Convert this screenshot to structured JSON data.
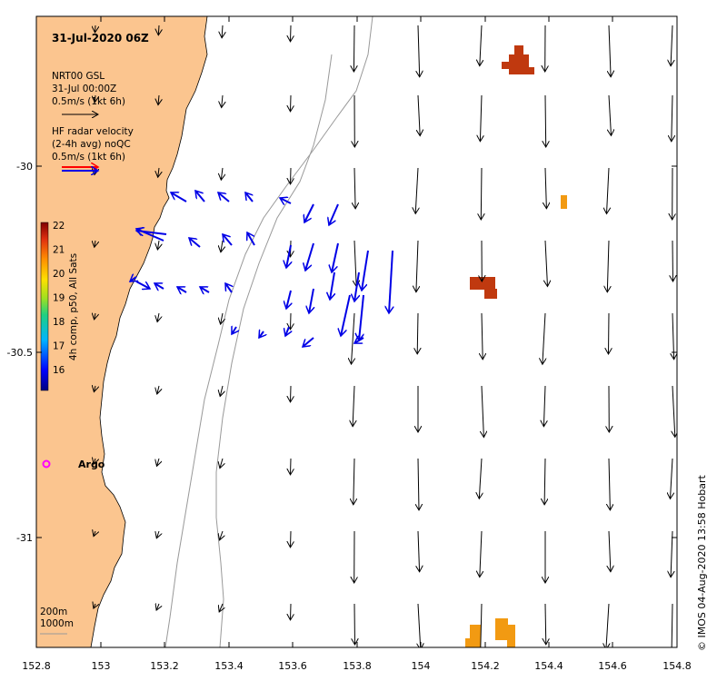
{
  "title": "31-Jul-2020 06Z",
  "model_legend": {
    "name": "NRT00 GSL",
    "time": "31-Jul 00:00Z",
    "scale": "0.5m/s (1kt 6h)"
  },
  "radar_legend": {
    "line1": "HF radar velocity",
    "line2": "(2-4h avg) noQC",
    "scale": "0.5m/s (1kt 6h)"
  },
  "colorbar": {
    "label": "4h comp, p50, All Sats",
    "ticks": [
      "16",
      "17",
      "18",
      "19",
      "20",
      "21",
      "22"
    ]
  },
  "argo_label": "Argo",
  "depth_legend": [
    "200m",
    "1000m"
  ],
  "x_ticks": [
    "152.8",
    "153",
    "153.2",
    "153.4",
    "153.6",
    "153.8",
    "154",
    "154.2",
    "154.4",
    "154.6",
    "154.8"
  ],
  "y_ticks": [
    "-30",
    "-30.5",
    "-31"
  ],
  "credit": "© IMOS 04-Aug-2020 13:58 Hobart",
  "colors": {
    "land": "#fbc58f",
    "radar": "#0000e6",
    "model": "#000000",
    "argo": "#ff00ff",
    "sst_warm": "#c0390f",
    "sst_hot": "#f29a12"
  }
}
